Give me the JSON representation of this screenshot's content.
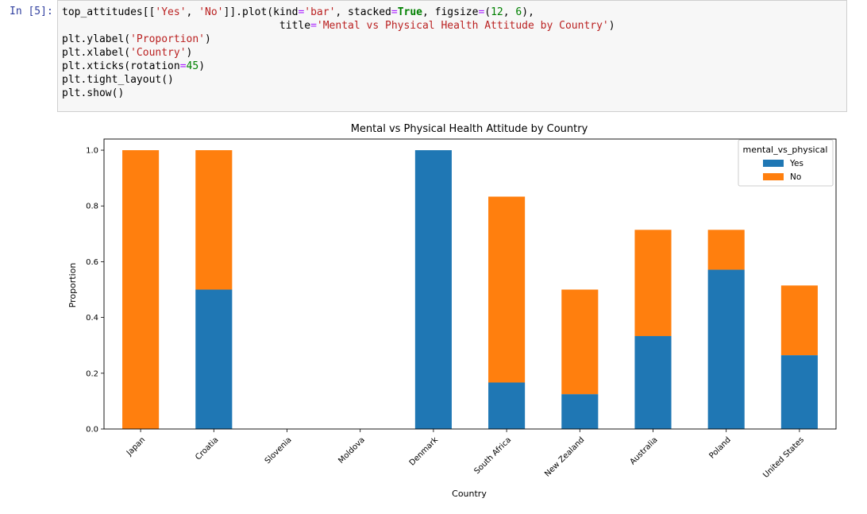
{
  "cell": {
    "prompt": "In [5]:",
    "code_lines": [
      "top_attitudes[['Yes', 'No']].plot(kind='bar', stacked=True, figsize=(12, 6),",
      "                                   title='Mental vs Physical Health Attitude by Country')",
      "plt.ylabel('Proportion')",
      "plt.xlabel('Country')",
      "plt.xticks(rotation=45)",
      "plt.tight_layout()",
      "plt.show()"
    ]
  },
  "chart_data": {
    "type": "bar",
    "stacked": true,
    "title": "Mental vs Physical Health Attitude by Country",
    "xlabel": "Country",
    "ylabel": "Proportion",
    "ylim": [
      0,
      1.04
    ],
    "yticks": [
      "0.0",
      "0.2",
      "0.4",
      "0.6",
      "0.8",
      "1.0"
    ],
    "categories": [
      "Japan",
      "Croatia",
      "Slovenia",
      "Moldova",
      "Denmark",
      "South Africa",
      "New Zealand",
      "Australia",
      "Poland",
      "United States"
    ],
    "series": [
      {
        "name": "Yes",
        "color": "#1f77b4",
        "values": [
          0.0,
          0.5,
          0.0,
          0.0,
          1.0,
          0.1667,
          0.125,
          0.3333,
          0.5714,
          0.2647
        ]
      },
      {
        "name": "No",
        "color": "#ff7f0e",
        "values": [
          1.0,
          0.5,
          0.0,
          0.0,
          0.0,
          0.6667,
          0.375,
          0.381,
          0.1429,
          0.25
        ]
      }
    ],
    "legend": {
      "title": "mental_vs_physical",
      "position": "top-right"
    },
    "grid": false
  }
}
